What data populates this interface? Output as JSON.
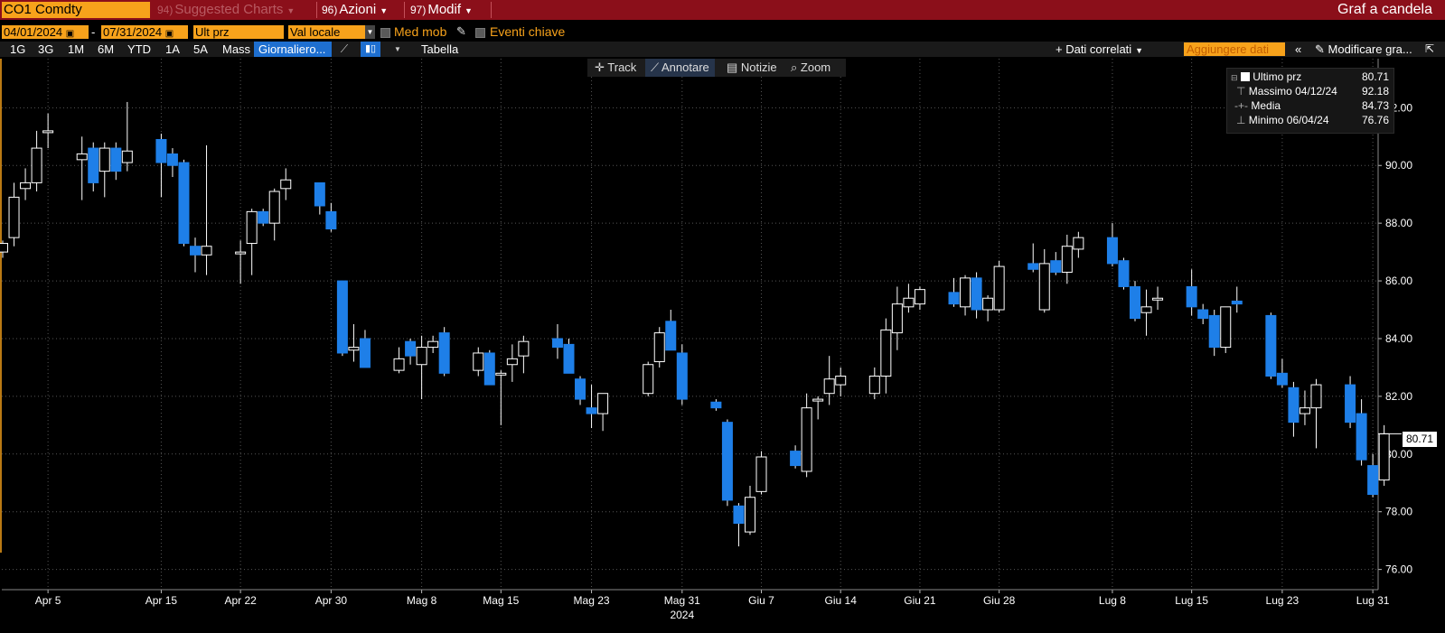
{
  "header": {
    "ticker": "CO1 Comdty",
    "suggested": {
      "num": "94)",
      "label": "Suggested Charts"
    },
    "actions": {
      "num": "96)",
      "label": "Azioni"
    },
    "modify": {
      "num": "97)",
      "label": "Modif"
    },
    "title": "Graf a candela"
  },
  "controls": {
    "start_date": "04/01/2024",
    "end_date": "07/31/2024",
    "date_sep": "-",
    "price_field": "Ult prz",
    "currency": "Val locale",
    "moving_avg": "Med mob",
    "key_events": "Eventi chiave"
  },
  "range_buttons": [
    "1G",
    "3G",
    "1M",
    "6M",
    "YTD",
    "1A",
    "5A",
    "Mass"
  ],
  "period": "Giornaliero...",
  "table_label": "Tabella",
  "related_data": "+ Dati correlati",
  "add_data_placeholder": "Aggiungere dati",
  "edit_chart": "Modificare gra...",
  "tools": [
    "Track",
    "Annotare",
    "Notizie",
    "Zoom"
  ],
  "legend": [
    {
      "label": "Ultimo prz",
      "value": "80.71"
    },
    {
      "label": "Massimo 04/12/24",
      "value": "92.18"
    },
    {
      "label": "Media",
      "value": "84.73"
    },
    {
      "label": "Minimo 06/04/24",
      "value": "76.76"
    }
  ],
  "last_price_tag": "80.71",
  "colors": {
    "up": "#ffffff",
    "down": "#1e7fe8",
    "topbar": "#8b0f1a",
    "accent": "#f7a21b"
  },
  "chart_data": {
    "type": "candlestick",
    "title": "",
    "xlabel": "2024",
    "ylabel": "",
    "ylim": [
      75.3,
      93.7
    ],
    "yticks": [
      76,
      78,
      80,
      82,
      84,
      86,
      88,
      90,
      92
    ],
    "ytick_labels": [
      "76.00",
      "78.00",
      "80.00",
      "82.00",
      "84.00",
      "86.00",
      "88.00",
      "90.00",
      "92.00"
    ],
    "xtick_labels": [
      "Apr 5",
      "Apr 15",
      "Apr 22",
      "Apr 30",
      "Mag 8",
      "Mag 15",
      "Mag 23",
      "Mag 31",
      "Giu 7",
      "Giu 14",
      "Giu 21",
      "Giu 28",
      "Lug 8",
      "Lug 15",
      "Lug 23",
      "Lug 31"
    ],
    "grid": true,
    "series": [
      {
        "columns": [
          "date",
          "open",
          "high",
          "low",
          "close"
        ],
        "rows": [
          [
            "2024-04-01",
            87.0,
            87.4,
            86.8,
            87.3
          ],
          [
            "2024-04-02",
            87.5,
            89.4,
            87.2,
            88.9
          ],
          [
            "2024-04-03",
            89.2,
            89.9,
            88.8,
            89.4
          ],
          [
            "2024-04-04",
            89.4,
            91.2,
            89.1,
            90.6
          ],
          [
            "2024-04-05",
            91.2,
            91.8,
            90.6,
            91.2
          ],
          [
            "2024-04-08",
            90.2,
            91.0,
            88.8,
            90.4
          ],
          [
            "2024-04-09",
            90.6,
            90.8,
            89.1,
            89.4
          ],
          [
            "2024-04-10",
            89.8,
            90.8,
            88.9,
            90.6
          ],
          [
            "2024-04-11",
            90.6,
            90.8,
            89.5,
            89.8
          ],
          [
            "2024-04-12",
            90.1,
            92.2,
            89.8,
            90.5
          ],
          [
            "2024-04-15",
            90.9,
            91.1,
            88.9,
            90.1
          ],
          [
            "2024-04-16",
            90.4,
            90.6,
            89.6,
            90.0
          ],
          [
            "2024-04-17",
            90.1,
            90.2,
            87.2,
            87.3
          ],
          [
            "2024-04-18",
            87.2,
            87.5,
            86.3,
            86.9
          ],
          [
            "2024-04-19",
            86.9,
            90.7,
            86.2,
            87.2
          ],
          [
            "2024-04-22",
            87.0,
            87.4,
            85.9,
            87.0
          ],
          [
            "2024-04-23",
            87.3,
            88.5,
            86.2,
            88.4
          ],
          [
            "2024-04-24",
            88.4,
            88.5,
            87.9,
            88.0
          ],
          [
            "2024-04-25",
            88.0,
            89.2,
            87.4,
            89.1
          ],
          [
            "2024-04-26",
            89.2,
            89.9,
            88.8,
            89.5
          ],
          [
            "2024-04-29",
            89.4,
            89.4,
            88.3,
            88.6
          ],
          [
            "2024-04-30",
            88.4,
            88.7,
            87.7,
            87.8
          ],
          [
            "2024-05-01",
            86.0,
            86.0,
            83.4,
            83.5
          ],
          [
            "2024-05-02",
            83.6,
            84.5,
            83.2,
            83.7
          ],
          [
            "2024-05-03",
            84.0,
            84.3,
            83.0,
            83.0
          ],
          [
            "2024-05-06",
            82.9,
            83.7,
            82.8,
            83.3
          ],
          [
            "2024-05-07",
            83.9,
            84.0,
            83.1,
            83.4
          ],
          [
            "2024-05-08",
            83.1,
            84.1,
            81.9,
            83.7
          ],
          [
            "2024-05-09",
            83.7,
            84.1,
            83.5,
            83.9
          ],
          [
            "2024-05-10",
            84.2,
            84.4,
            82.7,
            82.8
          ],
          [
            "2024-05-13",
            82.9,
            83.7,
            82.7,
            83.5
          ],
          [
            "2024-05-14",
            83.5,
            83.6,
            82.4,
            82.4
          ],
          [
            "2024-05-15",
            82.8,
            82.9,
            81.0,
            82.8
          ],
          [
            "2024-05-16",
            83.1,
            83.8,
            82.5,
            83.3
          ],
          [
            "2024-05-17",
            83.4,
            84.1,
            82.8,
            83.9
          ],
          [
            "2024-05-20",
            84.0,
            84.5,
            83.3,
            83.7
          ],
          [
            "2024-05-21",
            83.8,
            84.0,
            82.8,
            82.8
          ],
          [
            "2024-05-22",
            82.6,
            82.7,
            81.7,
            81.9
          ],
          [
            "2024-05-23",
            81.6,
            82.4,
            80.9,
            81.4
          ],
          [
            "2024-05-24",
            81.4,
            82.1,
            80.8,
            82.1
          ],
          [
            "2024-05-28",
            82.1,
            83.2,
            82.0,
            83.1
          ],
          [
            "2024-05-29",
            83.2,
            84.4,
            83.0,
            84.2
          ],
          [
            "2024-05-30",
            84.6,
            85.0,
            83.8,
            83.6
          ],
          [
            "2024-05-31",
            83.5,
            83.8,
            81.7,
            81.9
          ],
          [
            "2024-06-03",
            81.8,
            81.9,
            81.5,
            81.6
          ],
          [
            "2024-06-04",
            81.1,
            81.2,
            78.2,
            78.4
          ],
          [
            "2024-06-05",
            78.2,
            78.3,
            76.8,
            77.6
          ],
          [
            "2024-06-06",
            77.3,
            78.9,
            77.2,
            78.5
          ],
          [
            "2024-06-07",
            78.7,
            80.1,
            78.6,
            79.9
          ],
          [
            "2024-06-10",
            80.1,
            80.3,
            79.5,
            79.6
          ],
          [
            "2024-06-11",
            79.4,
            82.1,
            79.2,
            81.6
          ],
          [
            "2024-06-12",
            81.9,
            82.0,
            81.2,
            81.9
          ],
          [
            "2024-06-13",
            82.1,
            83.4,
            81.7,
            82.6
          ],
          [
            "2024-06-14",
            82.4,
            83.0,
            82.0,
            82.7
          ],
          [
            "2024-06-17",
            82.1,
            83.0,
            81.9,
            82.7
          ],
          [
            "2024-06-18",
            82.7,
            84.7,
            82.1,
            84.3
          ],
          [
            "2024-06-19",
            84.2,
            85.8,
            83.6,
            85.2
          ],
          [
            "2024-06-20",
            85.1,
            85.9,
            84.9,
            85.4
          ],
          [
            "2024-06-21",
            85.2,
            85.8,
            85.0,
            85.7
          ],
          [
            "2024-06-24",
            85.6,
            86.1,
            85.1,
            85.2
          ],
          [
            "2024-06-25",
            85.1,
            86.2,
            84.8,
            86.1
          ],
          [
            "2024-06-26",
            86.1,
            86.3,
            84.7,
            85.0
          ],
          [
            "2024-06-27",
            85.0,
            85.5,
            84.6,
            85.4
          ],
          [
            "2024-06-28",
            85.0,
            86.7,
            84.9,
            86.5
          ],
          [
            "2024-07-01",
            86.6,
            87.3,
            86.3,
            86.4
          ],
          [
            "2024-07-02",
            85.0,
            87.1,
            84.9,
            86.6
          ],
          [
            "2024-07-03",
            86.7,
            87.0,
            86.2,
            86.3
          ],
          [
            "2024-07-04",
            86.3,
            87.6,
            85.9,
            87.2
          ],
          [
            "2024-07-05",
            87.1,
            87.7,
            86.8,
            87.5
          ],
          [
            "2024-07-08",
            87.5,
            88.0,
            86.5,
            86.6
          ],
          [
            "2024-07-09",
            86.7,
            86.8,
            85.7,
            85.8
          ],
          [
            "2024-07-10",
            85.8,
            86.0,
            84.6,
            84.7
          ],
          [
            "2024-07-11",
            84.9,
            85.7,
            84.1,
            85.1
          ],
          [
            "2024-07-12",
            85.4,
            85.8,
            85.0,
            85.4
          ],
          [
            "2024-07-15",
            85.8,
            86.4,
            84.8,
            85.1
          ],
          [
            "2024-07-16",
            85.0,
            85.2,
            84.5,
            84.7
          ],
          [
            "2024-07-17",
            84.8,
            85.0,
            83.4,
            83.7
          ],
          [
            "2024-07-18",
            83.7,
            85.1,
            83.5,
            85.1
          ],
          [
            "2024-07-19",
            85.3,
            85.8,
            84.9,
            85.2
          ],
          [
            "2024-07-22",
            84.8,
            84.9,
            82.6,
            82.7
          ],
          [
            "2024-07-23",
            82.8,
            83.3,
            82.3,
            82.4
          ],
          [
            "2024-07-24",
            82.3,
            82.5,
            80.6,
            81.1
          ],
          [
            "2024-07-25",
            81.4,
            82.2,
            81.0,
            81.6
          ],
          [
            "2024-07-26",
            81.6,
            82.6,
            80.2,
            82.4
          ],
          [
            "2024-07-29",
            82.4,
            82.7,
            80.9,
            81.1
          ],
          [
            "2024-07-30",
            81.4,
            81.9,
            79.6,
            79.8
          ],
          [
            "2024-07-31",
            79.6,
            80.0,
            78.5,
            78.6
          ],
          [
            "2024-08-01",
            79.1,
            81.0,
            78.9,
            80.7
          ]
        ]
      }
    ]
  }
}
